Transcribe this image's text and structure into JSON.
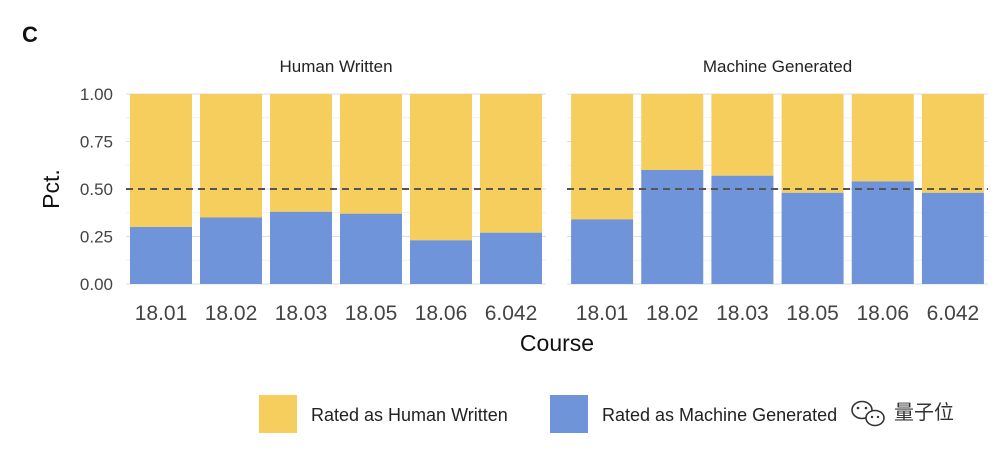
{
  "panel_label": "C",
  "chart_data": {
    "type": "bar",
    "stacked": true,
    "xlabel": "Course",
    "ylabel": "Pct.",
    "ylim": [
      0,
      1
    ],
    "y_ticks": [
      "0.00",
      "0.25",
      "0.50",
      "0.75",
      "1.00"
    ],
    "reference_line": {
      "y": 0.5,
      "style": "dashed"
    },
    "grid": true,
    "legend_position": "bottom",
    "colors": {
      "human": "#F6CE5D",
      "machine": "#7094DA"
    },
    "legend": [
      "Rated as Human Written",
      "Rated as Machine Generated"
    ],
    "facets": [
      {
        "title": "Human Written",
        "categories": [
          "18.01",
          "18.02",
          "18.03",
          "18.05",
          "18.06",
          "6.042"
        ],
        "series": [
          {
            "name": "Rated as Machine Generated",
            "values": [
              0.3,
              0.35,
              0.38,
              0.37,
              0.23,
              0.27
            ]
          },
          {
            "name": "Rated as Human Written",
            "values": [
              0.7,
              0.65,
              0.62,
              0.63,
              0.77,
              0.73
            ]
          }
        ]
      },
      {
        "title": "Machine Generated",
        "categories": [
          "18.01",
          "18.02",
          "18.03",
          "18.05",
          "18.06",
          "6.042"
        ],
        "series": [
          {
            "name": "Rated as Machine Generated",
            "values": [
              0.34,
              0.6,
              0.57,
              0.48,
              0.54,
              0.48
            ]
          },
          {
            "name": "Rated as Human Written",
            "values": [
              0.66,
              0.4,
              0.43,
              0.52,
              0.46,
              0.52
            ]
          }
        ]
      }
    ]
  },
  "watermark": {
    "text": "量子位",
    "icon": "wechat-icon"
  }
}
